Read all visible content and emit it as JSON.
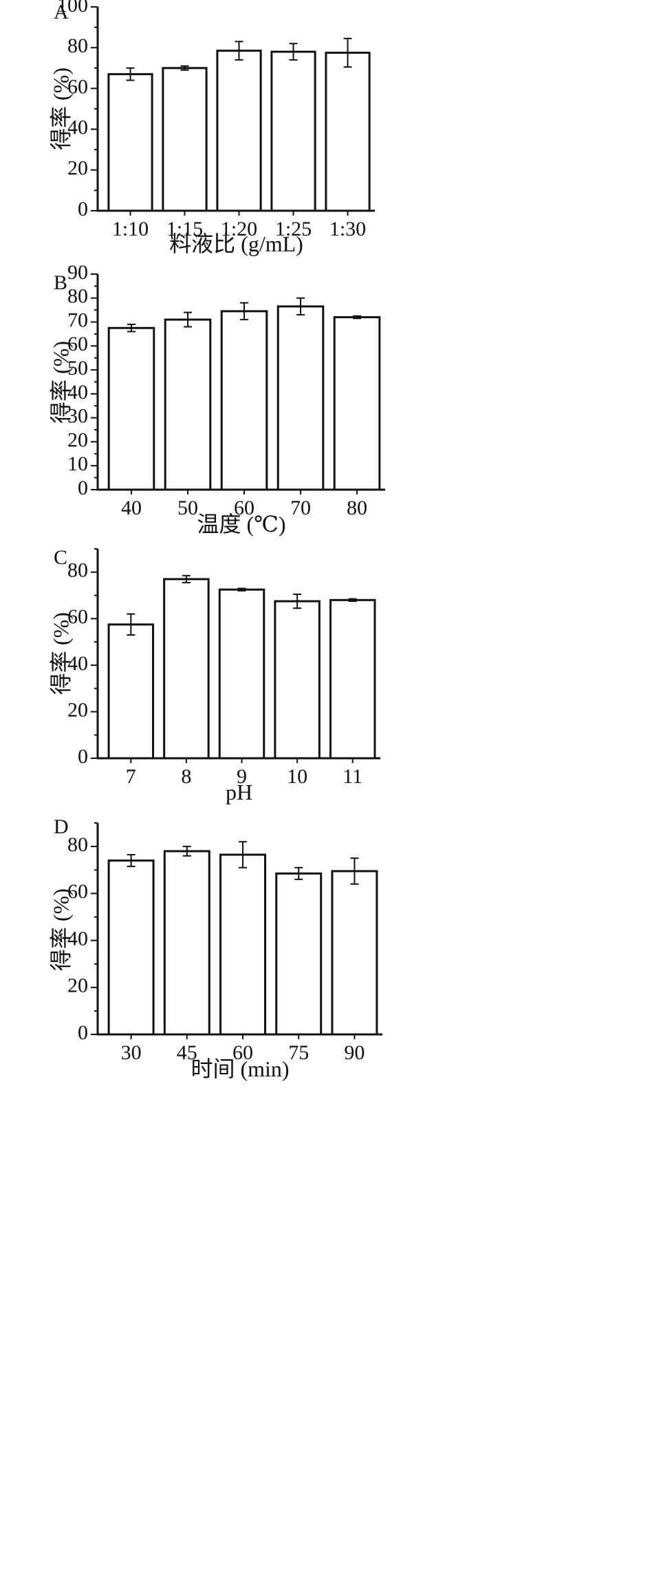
{
  "chart_data": [
    {
      "type": "bar",
      "panel": "A",
      "categories": [
        "1:10",
        "1:15",
        "1:20",
        "1:25",
        "1:30"
      ],
      "values": [
        67,
        70,
        78.5,
        78,
        77.5
      ],
      "errors": [
        3,
        1,
        4.5,
        4,
        7
      ],
      "xlabel": "料液比 (g/mL)",
      "ylabel": "得率 (%)",
      "ylim": [
        0,
        100
      ],
      "yticks": [
        0,
        20,
        40,
        60,
        80,
        100
      ],
      "grid": false
    },
    {
      "type": "bar",
      "panel": "B",
      "categories": [
        "40",
        "50",
        "60",
        "70",
        "80"
      ],
      "values": [
        67.5,
        71,
        74.5,
        76.5,
        72
      ],
      "errors": [
        1.5,
        3,
        3.5,
        3.5,
        0.5
      ],
      "xlabel": "温度 (℃)",
      "ylabel": "得率 (%)",
      "ylim": [
        0,
        90
      ],
      "yticks": [
        0,
        10,
        20,
        30,
        40,
        50,
        60,
        70,
        80,
        90
      ],
      "grid": false
    },
    {
      "type": "bar",
      "panel": "C",
      "categories": [
        "7",
        "8",
        "9",
        "10",
        "11"
      ],
      "values": [
        57.5,
        77,
        72.5,
        67.5,
        68
      ],
      "errors": [
        4.5,
        1.5,
        0.5,
        3,
        0.5
      ],
      "xlabel": "pH",
      "ylabel": "得率 (%)",
      "ylim": [
        0,
        90
      ],
      "yticks": [
        0,
        20,
        40,
        60,
        80
      ],
      "grid": false
    },
    {
      "type": "bar",
      "panel": "D",
      "categories": [
        "30",
        "45",
        "60",
        "75",
        "90"
      ],
      "values": [
        74,
        78,
        76.5,
        68.5,
        69.5
      ],
      "errors": [
        2.5,
        2,
        5.5,
        2.5,
        5.5
      ],
      "xlabel": "时间 (min)",
      "ylabel": "得率 (%)",
      "ylim": [
        0,
        90
      ],
      "yticks": [
        0,
        20,
        40,
        60,
        80
      ],
      "grid": false
    }
  ]
}
